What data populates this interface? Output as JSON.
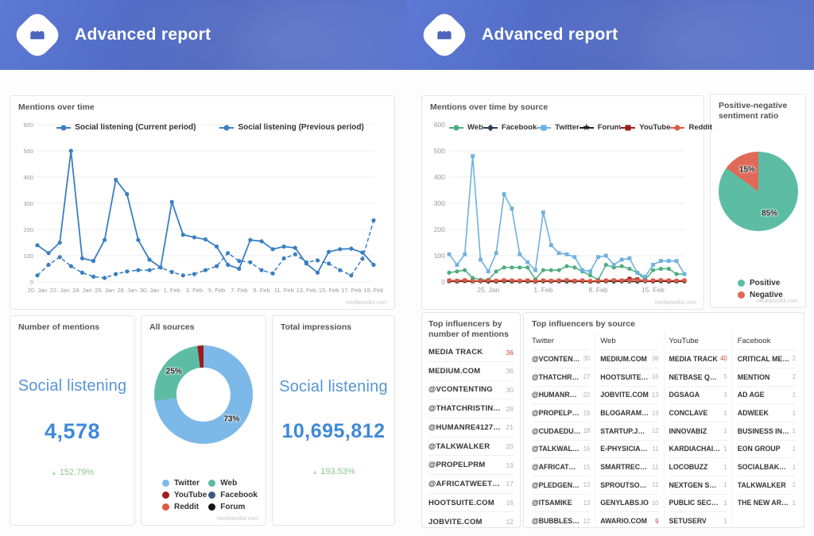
{
  "header": {
    "title": "Advanced report"
  },
  "watermark": "mediatoolkit.com",
  "kpis": {
    "mentions": {
      "title": "Number of mentions",
      "label": "Social listening",
      "value": "4,578",
      "change": "152.79%",
      "up_symbol": "▲"
    },
    "impressions": {
      "title": "Total impressions",
      "label": "Social listening",
      "value": "10,695,812",
      "change": "193.53%",
      "up_symbol": "▲"
    }
  },
  "lists": {
    "top_mentions": {
      "title": "Top influencers by number of mentions",
      "rows": [
        {
          "name": "MEDIA TRACK",
          "value": 36,
          "highlight": true
        },
        {
          "name": "MEDIUM.COM",
          "value": 36
        },
        {
          "name": "@VCONTENTING",
          "value": 30
        },
        {
          "name": "@THATCHRISTINAG",
          "value": 28
        },
        {
          "name": "@HUMANRE41270855",
          "value": 21
        },
        {
          "name": "@TALKWALKER",
          "value": 20
        },
        {
          "name": "@PROPELPRM",
          "value": 19
        },
        {
          "name": "@AFRICATWEETCH...",
          "value": 17
        },
        {
          "name": "HOOTSUITE.COM",
          "value": 16
        },
        {
          "name": "JOBVITE.COM",
          "value": 12
        }
      ]
    },
    "by_source": {
      "title": "Top influencers by source",
      "columns": [
        {
          "label": "Twitter",
          "rows": [
            {
              "name": "@VCONTENTI...",
              "value": 30
            },
            {
              "name": "@THATCHRISTIN...",
              "value": 27
            },
            {
              "name": "@HUMANRE4127...",
              "value": 22
            },
            {
              "name": "@PROPELPRM",
              "value": 19
            },
            {
              "name": "@CUDAEDUCATI...",
              "value": 18
            },
            {
              "name": "@TALKWALK...",
              "value": 16
            },
            {
              "name": "@AFRICATWEET...",
              "value": 15
            },
            {
              "name": "@PLEDGENEPAL",
              "value": 13
            },
            {
              "name": "@ITSAMIKE",
              "value": 13
            },
            {
              "name": "@BUBBLES4...",
              "value": 12
            }
          ]
        },
        {
          "label": "Web",
          "rows": [
            {
              "name": "MEDIUM.COM",
              "value": 36
            },
            {
              "name": "HOOTSUITE.COM",
              "value": 16
            },
            {
              "name": "JOBVITE.COM",
              "value": 13
            },
            {
              "name": "BLOGARAMA.COM",
              "value": 13
            },
            {
              "name": "STARTUP.JOBS",
              "value": 12
            },
            {
              "name": "E-PHYSICIAN.IN...",
              "value": 11
            },
            {
              "name": "SMARTRECRUIT...",
              "value": 11
            },
            {
              "name": "SPROUTSOCIAL....",
              "value": 11
            },
            {
              "name": "GENYLABS.IO",
              "value": 10
            },
            {
              "name": "AWARIO.COM",
              "value": 9,
              "highlight": true
            }
          ]
        },
        {
          "label": "YouTube",
          "rows": [
            {
              "name": "MEDIA TRACK",
              "value": 40,
              "highlight": true
            },
            {
              "name": "NETBASE QUID",
              "value": 5
            },
            {
              "name": "DGSAGA",
              "value": 3
            },
            {
              "name": "CONCLAVE",
              "value": 1
            },
            {
              "name": "INNOVABIZ",
              "value": 1
            },
            {
              "name": "KARDIACHAIN OF...",
              "value": 1
            },
            {
              "name": "LOCOBUZZ",
              "value": 1
            },
            {
              "name": "NEXTGEN SKOPJ...",
              "value": 1
            },
            {
              "name": "PUBLIC SECTOR ...",
              "value": 1
            },
            {
              "name": "SETUSERV",
              "value": 1
            }
          ]
        },
        {
          "label": "Facebook",
          "rows": [
            {
              "name": "CRITICAL MENTI...",
              "value": 2
            },
            {
              "name": "MENTION",
              "value": 2
            },
            {
              "name": "AD AGE",
              "value": 1
            },
            {
              "name": "ADWEEK",
              "value": 1
            },
            {
              "name": "BUSINESS INSIDER",
              "value": 1
            },
            {
              "name": "EON GROUP",
              "value": 1
            },
            {
              "name": "SOCIALBAKERS",
              "value": 1
            },
            {
              "name": "TALKWALKER",
              "value": 1
            },
            {
              "name": "THE NEW ARAB",
              "value": 1
            }
          ]
        }
      ]
    }
  },
  "chart_data": [
    {
      "id": "mentions_over_time",
      "type": "line",
      "title": "Mentions over time",
      "xlabel": "",
      "ylabel": "",
      "ylim": [
        0,
        600
      ],
      "yticks": [
        0,
        100,
        200,
        300,
        400,
        500,
        600
      ],
      "grid": true,
      "legend_position": "top-center",
      "tick_font": 7.5,
      "x_tick_every": 2,
      "x_tick_labels": [
        "20. Jan",
        "22. Jan",
        "24. Jan",
        "26. Jan",
        "28. Jan",
        "30. Jan",
        "1. Feb",
        "3. Feb",
        "5. Feb",
        "7. Feb",
        "9. Feb",
        "11. Feb",
        "13. Feb",
        "15. Feb",
        "17. Feb",
        "19. Feb"
      ],
      "series": [
        {
          "name": "Social listening (Current period)",
          "color": "#3a7fc1",
          "dash": false,
          "marker": "circle",
          "width": 1.8,
          "values": [
            140,
            110,
            150,
            500,
            90,
            80,
            160,
            390,
            335,
            160,
            85,
            55,
            305,
            180,
            170,
            162,
            135,
            65,
            50,
            160,
            155,
            125,
            135,
            130,
            70,
            35,
            115,
            125,
            127,
            112,
            65
          ]
        },
        {
          "name": "Social listening (Previous period)",
          "color": "#3a7fc1",
          "dash": true,
          "marker": "circle",
          "width": 1.5,
          "values": [
            25,
            65,
            95,
            60,
            35,
            20,
            15,
            30,
            40,
            45,
            45,
            55,
            38,
            25,
            30,
            45,
            60,
            110,
            80,
            75,
            45,
            32,
            90,
            105,
            75,
            82,
            70,
            45,
            25,
            88,
            235
          ]
        }
      ]
    },
    {
      "id": "mentions_by_source",
      "type": "line",
      "title": "Mentions over time by source",
      "xlabel": "",
      "ylabel": "",
      "ylim": [
        0,
        600
      ],
      "yticks": [
        0,
        100,
        200,
        300,
        400,
        500,
        600
      ],
      "grid": true,
      "legend_position": "top-row",
      "tick_font": 8.5,
      "x_tick_positions": [
        5,
        12,
        19,
        26
      ],
      "x_tick_labels": [
        "25. Jan",
        "1. Feb",
        "8. Feb",
        "15. Feb"
      ],
      "series": [
        {
          "name": "Web",
          "color": "#4cae80",
          "marker": "circle",
          "width": 1.5,
          "values": [
            35,
            40,
            45,
            15,
            8,
            8,
            40,
            55,
            55,
            55,
            55,
            10,
            45,
            45,
            45,
            60,
            55,
            40,
            25,
            8,
            65,
            55,
            60,
            50,
            35,
            8,
            45,
            50,
            50,
            30,
            30
          ]
        },
        {
          "name": "Facebook",
          "color": "#2e4057",
          "marker": "diamond",
          "width": 1.2,
          "values": [
            3,
            2,
            4,
            3,
            2,
            1,
            2,
            3,
            2,
            2,
            3,
            1,
            2,
            3,
            2,
            2,
            3,
            2,
            1,
            2,
            3,
            2,
            2,
            3,
            1,
            2,
            3,
            2,
            2,
            3,
            2
          ]
        },
        {
          "name": "Twitter",
          "color": "#6fb0e0",
          "marker": "square",
          "width": 1.6,
          "values": [
            105,
            65,
            105,
            480,
            85,
            40,
            110,
            335,
            280,
            105,
            75,
            45,
            265,
            140,
            110,
            105,
            95,
            45,
            40,
            95,
            100,
            65,
            85,
            90,
            35,
            20,
            65,
            80,
            80,
            80,
            30
          ]
        },
        {
          "name": "Forum",
          "color": "#222222",
          "marker": "star",
          "width": 1.2,
          "values": [
            2,
            1,
            2,
            1,
            3,
            1,
            1,
            2,
            1,
            2,
            1,
            1,
            2,
            1,
            2,
            1,
            1,
            2,
            1,
            1,
            2,
            1,
            2,
            1,
            1,
            2,
            1,
            2,
            1,
            1,
            2
          ]
        },
        {
          "name": "YouTube",
          "color": "#9e1b1b",
          "marker": "square",
          "width": 1.3,
          "values": [
            5,
            4,
            6,
            3,
            4,
            5,
            4,
            6,
            5,
            4,
            5,
            3,
            5,
            4,
            5,
            6,
            4,
            5,
            3,
            4,
            5,
            6,
            5,
            12,
            10,
            4,
            5,
            6,
            5,
            4,
            5
          ]
        },
        {
          "name": "Reddit",
          "color": "#dd5b43",
          "marker": "circle",
          "width": 1.3,
          "values": [
            6,
            5,
            7,
            4,
            5,
            6,
            5,
            7,
            6,
            5,
            6,
            4,
            6,
            5,
            6,
            7,
            5,
            6,
            4,
            5,
            6,
            7,
            6,
            5,
            6,
            4,
            6,
            7,
            6,
            5,
            6
          ]
        }
      ]
    },
    {
      "id": "sentiment_ratio",
      "type": "pie",
      "title": "Positive-negative sentiment ratio",
      "legend_position": "bottom",
      "slices": [
        {
          "label": "Positive",
          "value": 85,
          "color": "#5dbda4"
        },
        {
          "label": "Negative",
          "value": 15,
          "color": "#e06a58"
        }
      ]
    },
    {
      "id": "all_sources",
      "type": "donut",
      "title": "All sources",
      "legend_position": "bottom-two-columns",
      "slices": [
        {
          "label": "Twitter",
          "value": 73,
          "color": "#7cb9e8"
        },
        {
          "label": "Web",
          "value": 25,
          "color": "#5dbda4"
        },
        {
          "label": "YouTube",
          "value": 2,
          "color": "#9e1b1b"
        },
        {
          "label": "Reddit",
          "value": 0,
          "color": "#dd5b43"
        },
        {
          "label": "Facebook",
          "value": 0,
          "color": "#3d5a80"
        },
        {
          "label": "Forum",
          "value": 0,
          "color": "#151515"
        }
      ],
      "legend_order": [
        "Twitter",
        "YouTube",
        "Reddit",
        "Web",
        "Facebook",
        "Forum"
      ]
    }
  ]
}
